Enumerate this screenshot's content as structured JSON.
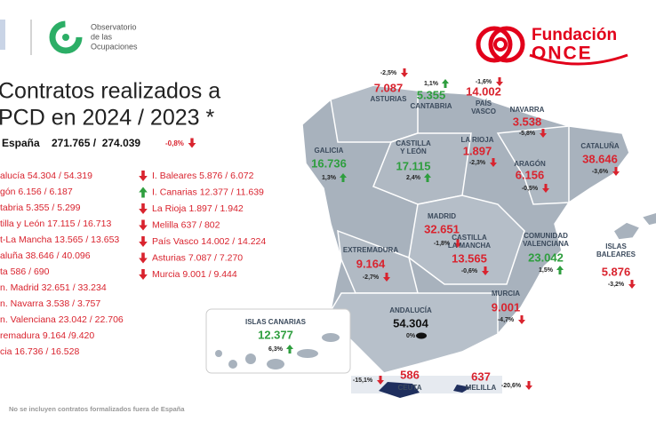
{
  "header": {
    "observatorio": [
      "Observatorio",
      "de las",
      "Ocupaciones"
    ],
    "fundacion": "Fundación",
    "once": "ONCE"
  },
  "title": [
    "Contratos realizados a",
    "PCD en 2024 / 2023 *"
  ],
  "total": {
    "label": "España",
    "value": "271.765 /  274.039",
    "change": "-0,8%",
    "trend": "down"
  },
  "left_list": [
    "alucía 54.304 / 54.319",
    "gón 6.156 / 6.187",
    "tabria 5.355 / 5.299",
    "tilla y León 17.115 / 16.713",
    "t-La Mancha 13.565 / 13.653",
    "aluña 38.646 / 40.096",
    "ta 586 / 690",
    "n. Madrid 32.651 / 33.234",
    "n. Navarra 3.538 / 3.757",
    "n. Valenciana 23.042 / 22.706",
    "remadura 9.164 /9.420",
    "cia 16.736 / 16.528"
  ],
  "right_list": [
    {
      "text": "I. Baleares 5.876 / 6.072",
      "trend": "down"
    },
    {
      "text": "I. Canarias 12.377 / 11.639",
      "trend": "up"
    },
    {
      "text": "La Rioja 1.897 / 1.942",
      "trend": "down"
    },
    {
      "text": "Melilla 637 / 802",
      "trend": "down"
    },
    {
      "text": "País Vasco 14.002 / 14.224",
      "trend": "down"
    },
    {
      "text": "Asturias 7.087 / 7.270",
      "trend": "down"
    },
    {
      "text": "Murcia 9.001 / 9.444",
      "trend": "down"
    }
  ],
  "regions": [
    {
      "name": [
        "GALICIA"
      ],
      "value": "16.736",
      "change": "1,3%",
      "trend": "up"
    },
    {
      "name": [
        "ASTURIAS"
      ],
      "value": "7.087",
      "change": "-2,5%",
      "trend": "down"
    },
    {
      "name": [
        "CANTABRIA"
      ],
      "value": "5.355",
      "change": "1,1%",
      "trend": "up"
    },
    {
      "name": [
        "PAÍS",
        "VASCO"
      ],
      "value": "14.002",
      "change": "-1,6%",
      "trend": "down"
    },
    {
      "name": [
        "NAVARRA"
      ],
      "value": "3.538",
      "change": "-5,8%",
      "trend": "down"
    },
    {
      "name": [
        "LA RIOJA"
      ],
      "value": "1.897",
      "change": "-2,3%",
      "trend": "down"
    },
    {
      "name": [
        "CASTILLA",
        "Y LEÓN"
      ],
      "value": "17.115",
      "change": "2,4%",
      "trend": "up"
    },
    {
      "name": [
        "ARAGÓN"
      ],
      "value": "6.156",
      "change": "-0,5%",
      "trend": "down"
    },
    {
      "name": [
        "CATALUÑA"
      ],
      "value": "38.646",
      "change": "-3,6%",
      "trend": "down"
    },
    {
      "name": [
        "MADRID"
      ],
      "value": "32.651",
      "change": "-1,8%",
      "trend": "down"
    },
    {
      "name": [
        "EXTREMADURA"
      ],
      "value": "9.164",
      "change": "-2,7%",
      "trend": "down"
    },
    {
      "name": [
        "CASTILLA",
        "LA MANCHA"
      ],
      "value": "13.565",
      "change": "-0,6%",
      "trend": "down"
    },
    {
      "name": [
        "COMUNIDAD",
        "VALENCIANA"
      ],
      "value": "23.042",
      "change": "1,5%",
      "trend": "up"
    },
    {
      "name": [
        "ISLAS",
        "BALEARES"
      ],
      "value": "5.876",
      "change": "-3,2%",
      "trend": "down"
    },
    {
      "name": [
        "MURCIA"
      ],
      "value": "9.001",
      "change": "-4,7%",
      "trend": "down"
    },
    {
      "name": [
        "ANDALUCÍA"
      ],
      "value": "54.304",
      "change": "0%",
      "trend": "flat"
    },
    {
      "name": [
        "ISLAS CANARIAS"
      ],
      "value": "12.377",
      "change": "6,3%",
      "trend": "up"
    },
    {
      "name": [
        "CEUTA"
      ],
      "value": "586",
      "change": "-15,1%",
      "trend": "down"
    },
    {
      "name": [
        "MELILLA"
      ],
      "value": "637",
      "change": "-20,6%",
      "trend": "down"
    }
  ],
  "footer": "No se incluyen contratos formalizados fuera de España"
}
